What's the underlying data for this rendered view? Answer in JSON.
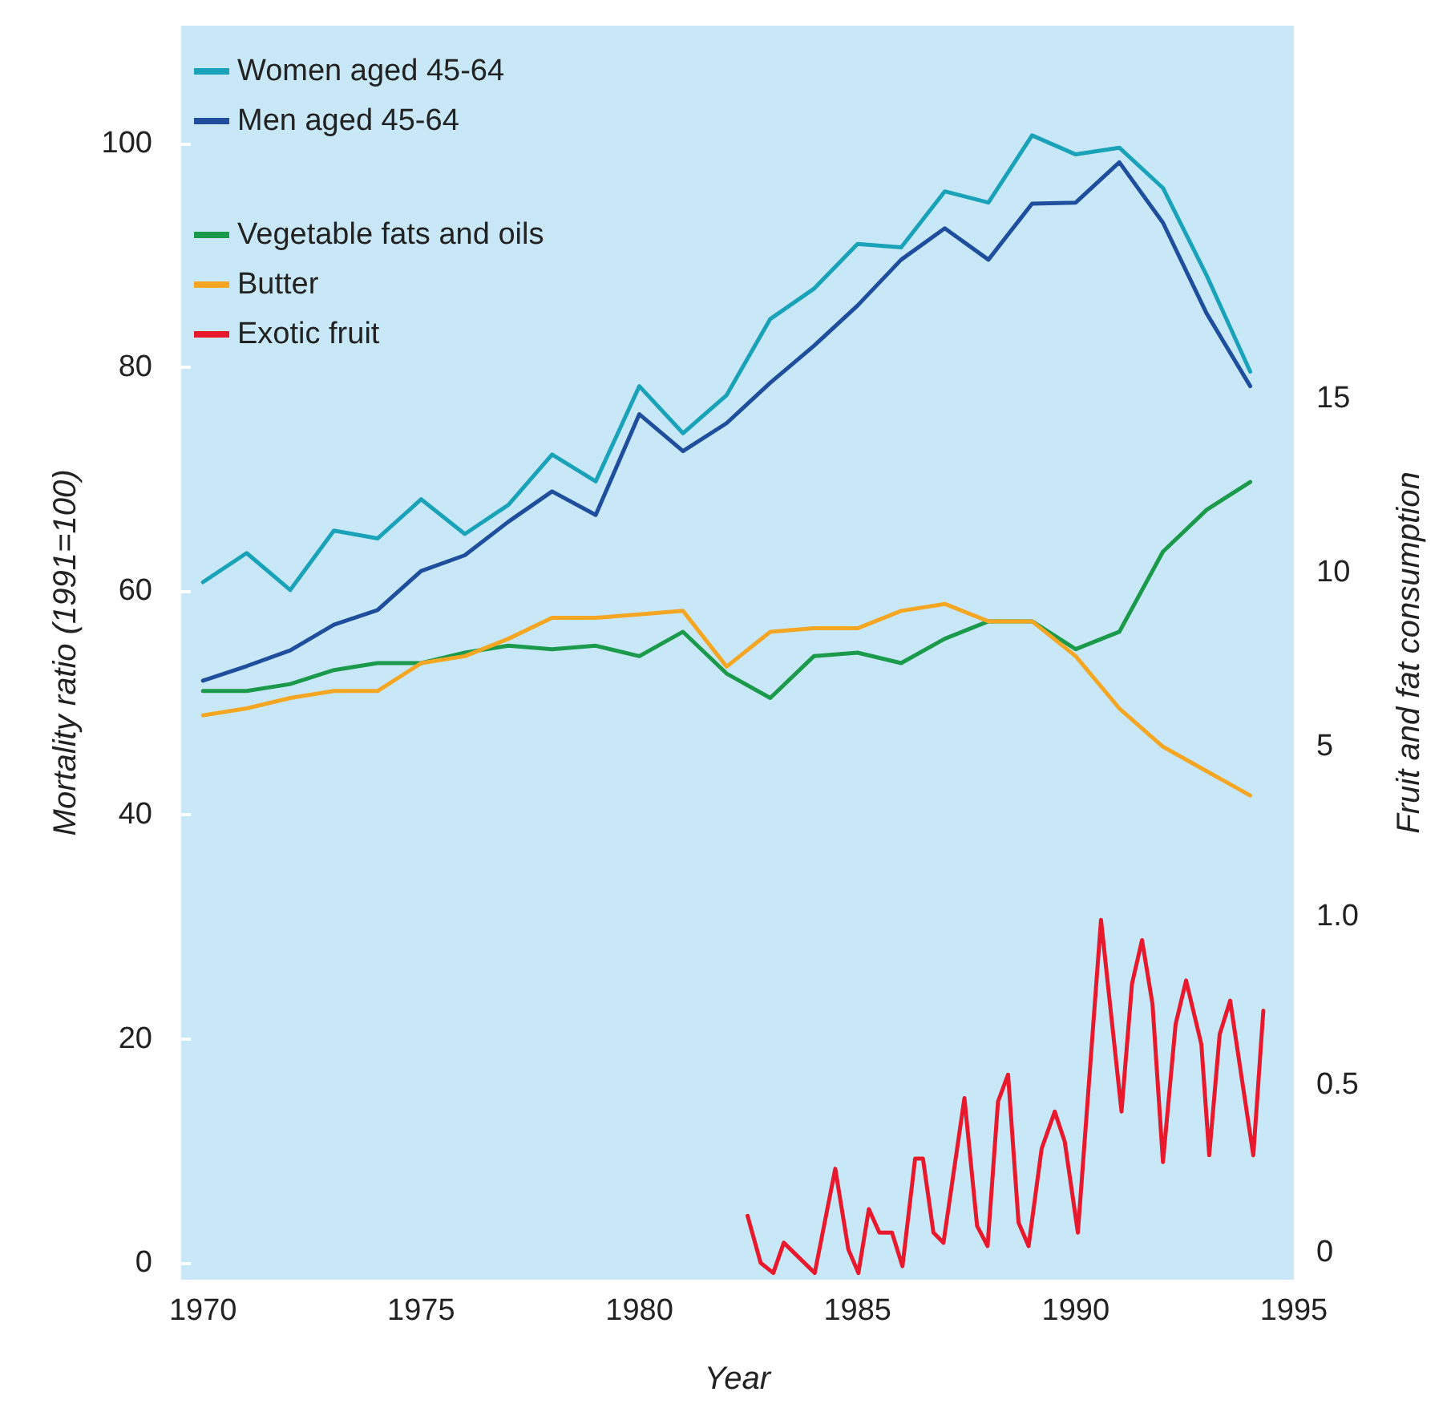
{
  "chart_data": {
    "type": "line",
    "xlabel": "Year",
    "ylabel": "Mortality ratio (1991=100)",
    "y2label": "Fruit and fat consumption",
    "x": [
      1970,
      1971,
      1972,
      1973,
      1974,
      1975,
      1976,
      1977,
      1978,
      1979,
      1980,
      1981,
      1982,
      1983,
      1984,
      1985,
      1986,
      1987,
      1988,
      1989,
      1990,
      1991,
      1992,
      1993,
      1994
    ],
    "series": [
      {
        "name": "Women aged 45-64",
        "color": "#1aa3b8",
        "values": [
          60.8,
          63.4,
          60.1,
          65.4,
          64.7,
          68.2,
          65.1,
          67.7,
          72.2,
          69.8,
          78.3,
          74.1,
          77.5,
          84.3,
          87.0,
          91.0,
          90.7,
          95.7,
          94.7,
          100.7,
          99.0,
          99.6,
          96.0,
          88.2,
          79.6
        ]
      },
      {
        "name": "Men aged 45-64",
        "color": "#1f4e9c",
        "values": [
          52.0,
          53.3,
          54.7,
          57.0,
          58.3,
          61.8,
          63.2,
          66.2,
          68.9,
          66.8,
          75.8,
          72.5,
          75.0,
          78.6,
          81.9,
          85.5,
          89.6,
          92.4,
          89.6,
          94.6,
          94.7,
          98.3,
          92.9,
          84.8,
          78.3
        ]
      },
      {
        "name": "Vegetable fats and oils",
        "color": "#1a9a4a",
        "axis": "y2",
        "values": [
          6.6,
          6.6,
          6.8,
          7.2,
          7.4,
          7.4,
          7.7,
          7.9,
          7.8,
          7.9,
          7.6,
          8.3,
          7.1,
          6.4,
          7.6,
          7.7,
          7.4,
          8.1,
          8.6,
          8.6,
          7.8,
          8.3,
          10.6,
          11.8,
          12.6
        ]
      },
      {
        "name": "Butter",
        "color": "#f5a623",
        "axis": "y2",
        "values": [
          5.9,
          6.1,
          6.4,
          6.6,
          6.6,
          7.4,
          7.6,
          8.1,
          8.7,
          8.7,
          8.8,
          8.9,
          7.3,
          8.3,
          8.4,
          8.4,
          8.9,
          9.1,
          8.6,
          8.6,
          7.6,
          6.1,
          5.0,
          4.3,
          3.6
        ]
      },
      {
        "name": "Exotic fruit",
        "color": "#e8192c",
        "axis": "y3",
        "x": [
          1982.48,
          1982.78,
          1983.07,
          1983.31,
          1984.02,
          1984.49,
          1984.79,
          1985.02,
          1985.26,
          1985.5,
          1985.79,
          1986.03,
          1986.32,
          1986.5,
          1986.74,
          1986.97,
          1987.45,
          1987.74,
          1987.98,
          1988.22,
          1988.45,
          1988.69,
          1988.92,
          1989.22,
          1989.52,
          1989.75,
          1990.05,
          1990.58,
          1991.05,
          1991.29,
          1991.52,
          1991.76,
          1992.0,
          1992.29,
          1992.53,
          1992.88,
          1993.06,
          1993.3,
          1993.54,
          1993.77,
          1994.07,
          1994.3
        ],
        "values": [
          0.11,
          -0.03,
          -0.06,
          0.03,
          -0.06,
          0.25,
          0.01,
          -0.06,
          0.13,
          0.06,
          0.06,
          -0.04,
          0.28,
          0.28,
          0.06,
          0.03,
          0.46,
          0.08,
          0.02,
          0.45,
          0.53,
          0.09,
          0.02,
          0.31,
          0.42,
          0.33,
          0.06,
          0.99,
          0.42,
          0.8,
          0.93,
          0.74,
          0.27,
          0.68,
          0.81,
          0.62,
          0.29,
          0.65,
          0.75,
          0.55,
          0.29,
          0.72
        ]
      }
    ],
    "xlim": [
      1969.5,
      1995
    ],
    "xticks": [
      1970,
      1975,
      1980,
      1985,
      1990,
      1995
    ],
    "ylim": [
      -1.5,
      110.5
    ],
    "yticks": [
      0,
      20,
      40,
      60,
      80,
      100
    ],
    "y2lim": [
      -10.3,
      25.7
    ],
    "y2ticks": [
      5,
      10,
      15
    ],
    "y3lim": [
      -0.08,
      3.65
    ],
    "y3ticks": [
      0,
      0.5,
      {
        "value": 1,
        "label": "1.0"
      }
    ],
    "grid": false,
    "legend": "top left",
    "marker": "none",
    "line_style": "solid"
  }
}
